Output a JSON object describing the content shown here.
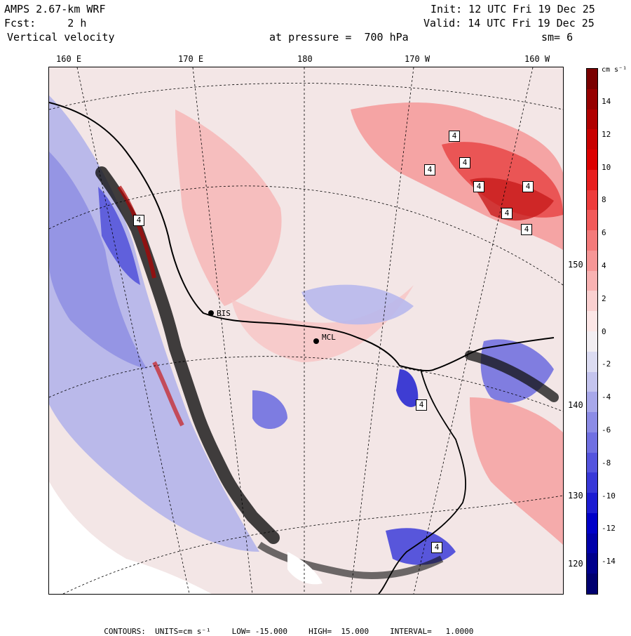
{
  "header": {
    "model": "AMPS 2.67-km WRF",
    "fcst": "Fcst:     2 h",
    "variable": "Vertical velocity",
    "init": "Init: 12 UTC Fri 19 Dec 25",
    "valid": "Valid: 14 UTC Fri 19 Dec 25",
    "pressure": "at pressure =  700 hPa",
    "smoothing": "sm= 6"
  },
  "map": {
    "top_longitudes": [
      "160 E",
      "170 E",
      "180",
      "170 W",
      "160 W"
    ],
    "right_latitudes": [
      "150 W",
      "140 W",
      "130 W",
      "120 W"
    ],
    "stations": [
      "BIS",
      "MCL"
    ],
    "highlow_labels": [
      "4",
      "4",
      "4",
      "4",
      "4",
      "4",
      "4",
      "4",
      "4",
      "4"
    ]
  },
  "colorbar": {
    "units": "cm s⁻¹",
    "ticks": [
      "14",
      "12",
      "10",
      "8",
      "6",
      "4",
      "2",
      "0",
      "-2",
      "-4",
      "-6",
      "-8",
      "-10",
      "-12",
      "-14"
    ],
    "colors": [
      "#7a0000",
      "#960000",
      "#b00000",
      "#c80000",
      "#dc0000",
      "#e81e1e",
      "#ee3c3c",
      "#f25a5a",
      "#f47a7a",
      "#f69696",
      "#f8b2b2",
      "#fad0d0",
      "#fce6e6",
      "#f2eef2",
      "#dcdcf2",
      "#c4c4ee",
      "#a8a8ea",
      "#8c8ce6",
      "#7070e2",
      "#5454de",
      "#3838d8",
      "#1c1cd2",
      "#0000c8",
      "#0000aa",
      "#00008c",
      "#000070"
    ]
  },
  "footer": {
    "contours": "CONTOURS:  UNITS=cm s⁻¹",
    "low": "LOW= -15.000",
    "high": "HIGH=  15.000",
    "interval": "INTERVAL=   1.0000"
  }
}
